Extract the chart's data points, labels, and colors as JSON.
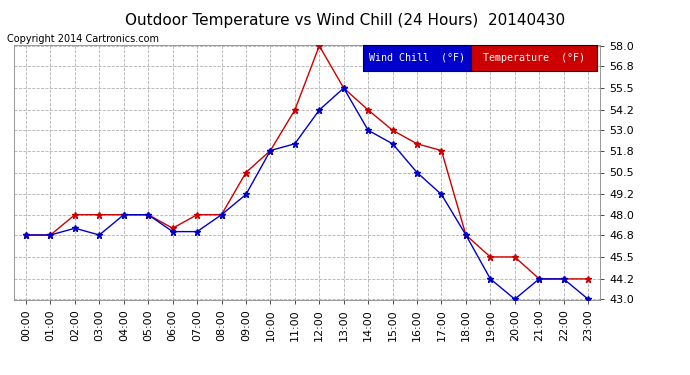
{
  "title": "Outdoor Temperature vs Wind Chill (24 Hours)  20140430",
  "copyright": "Copyright 2014 Cartronics.com",
  "hours": [
    "00:00",
    "01:00",
    "02:00",
    "03:00",
    "04:00",
    "05:00",
    "06:00",
    "07:00",
    "08:00",
    "09:00",
    "10:00",
    "11:00",
    "12:00",
    "13:00",
    "14:00",
    "15:00",
    "16:00",
    "17:00",
    "18:00",
    "19:00",
    "20:00",
    "21:00",
    "22:00",
    "23:00"
  ],
  "temperature": [
    46.8,
    46.8,
    48.0,
    48.0,
    48.0,
    48.0,
    47.2,
    48.0,
    48.0,
    50.5,
    51.8,
    54.2,
    58.0,
    55.5,
    54.2,
    53.0,
    52.2,
    51.8,
    46.8,
    45.5,
    45.5,
    44.2,
    44.2,
    44.2
  ],
  "wind_chill": [
    46.8,
    46.8,
    47.2,
    46.8,
    48.0,
    48.0,
    47.0,
    47.0,
    48.0,
    49.2,
    51.8,
    52.2,
    54.2,
    55.5,
    53.0,
    52.2,
    50.5,
    49.2,
    46.8,
    44.2,
    43.0,
    44.2,
    44.2,
    43.0
  ],
  "ylim": [
    43.0,
    58.0
  ],
  "yticks": [
    43.0,
    44.2,
    45.5,
    46.8,
    48.0,
    49.2,
    50.5,
    51.8,
    53.0,
    54.2,
    55.5,
    56.8,
    58.0
  ],
  "temp_color": "#cc0000",
  "wc_color": "#0000cc",
  "bg_color": "#ffffff",
  "grid_color": "#b0b0b0",
  "legend_wc_bg": "#0000cc",
  "legend_temp_bg": "#cc0000",
  "legend_text_color": "#ffffff",
  "title_fontsize": 11,
  "tick_fontsize": 8,
  "copyright_fontsize": 7
}
